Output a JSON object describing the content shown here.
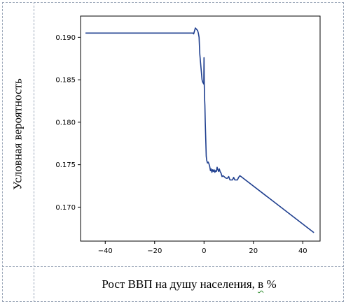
{
  "chart_data": {
    "type": "line",
    "title": "",
    "xlabel_prefix": "Рост ВВП на душу населения,",
    "xlabel_tail": "в",
    "xlabel_unit": "%",
    "ylabel": "Условная вероятность",
    "xlim": [
      -50,
      47
    ],
    "ylim": [
      0.166,
      0.1925
    ],
    "xticks": [
      -40,
      -20,
      0,
      20,
      40
    ],
    "yticks": [
      0.17,
      0.175,
      0.18,
      0.185,
      0.19
    ],
    "xtick_labels": [
      "−40",
      "−20",
      "0",
      "20",
      "40"
    ],
    "ytick_labels": [
      "0.170",
      "0.175",
      "0.180",
      "0.185",
      "0.190"
    ],
    "grid": false,
    "line_color": "#1f3f8f",
    "series": [
      {
        "x": [
          -48,
          -30,
          -10,
          -5,
          -4.5,
          -4.2,
          -3.8,
          -3.5,
          -3.2,
          -2.9,
          -2.6,
          -2.3,
          -2.0,
          -1.7,
          -1.4,
          -1.1,
          -0.8,
          -0.5,
          -0.3,
          -0.1,
          0.0,
          0.1,
          0.2,
          0.35,
          0.5,
          0.7,
          0.9,
          1.1,
          1.4,
          1.7,
          2.0,
          2.3,
          2.6,
          2.9,
          3.2,
          3.5,
          3.8,
          4.1,
          4.4,
          4.7,
          5.0,
          5.3,
          5.6,
          5.9,
          6.2,
          6.5,
          6.9,
          7.3,
          7.7,
          8.1,
          8.5,
          9.0,
          9.5,
          10.0,
          10.5,
          11.0,
          11.5,
          12.0,
          12.5,
          13.0,
          13.5,
          14.0,
          14.5,
          15.0,
          44.5
        ],
        "y": [
          0.1905,
          0.1905,
          0.1905,
          0.1905,
          0.1905,
          0.1904,
          0.1908,
          0.1911,
          0.191,
          0.1909,
          0.1908,
          0.1905,
          0.19,
          0.188,
          0.187,
          0.186,
          0.185,
          0.1847,
          0.1846,
          0.1845,
          0.1876,
          0.1845,
          0.183,
          0.182,
          0.18,
          0.178,
          0.176,
          0.1755,
          0.1752,
          0.1753,
          0.1751,
          0.1748,
          0.1743,
          0.1745,
          0.1741,
          0.1744,
          0.1742,
          0.1744,
          0.1741,
          0.1743,
          0.1742,
          0.1747,
          0.1744,
          0.1742,
          0.1745,
          0.1742,
          0.174,
          0.1736,
          0.1737,
          0.1736,
          0.1735,
          0.1734,
          0.1734,
          0.1736,
          0.1732,
          0.1732,
          0.1732,
          0.1735,
          0.1732,
          0.1732,
          0.1732,
          0.1735,
          0.1737,
          0.1736,
          0.167
        ]
      }
    ]
  }
}
